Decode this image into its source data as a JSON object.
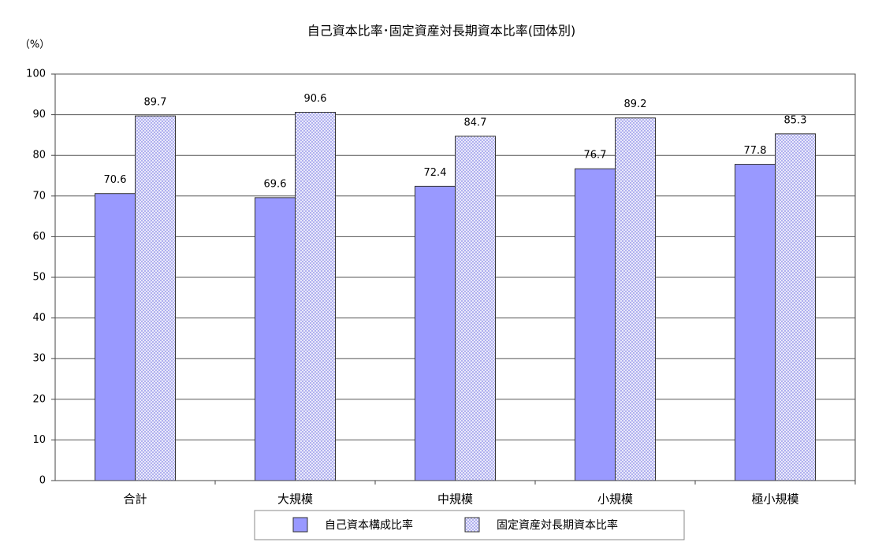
{
  "chart_data": {
    "type": "bar",
    "title": "自己資本比率･固定資産対長期資本比率(団体別)",
    "y_label": "（%）",
    "categories": [
      "合計",
      "大規模",
      "中規模",
      "小規模",
      "極小規模"
    ],
    "series": [
      {
        "name": "自己資本構成比率",
        "color": "#9999ff",
        "values": [
          70.6,
          69.6,
          72.4,
          76.7,
          77.8
        ]
      },
      {
        "name": "固定資産対長期資本比率",
        "color": "#aaaaee",
        "values": [
          89.7,
          90.6,
          84.7,
          89.2,
          85.3
        ]
      }
    ],
    "ylim": [
      0,
      100
    ],
    "yticks": [
      0,
      10,
      20,
      30,
      40,
      50,
      60,
      70,
      80,
      90,
      100
    ],
    "grid": true,
    "legend": "bottom"
  }
}
